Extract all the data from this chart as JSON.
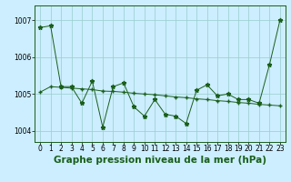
{
  "title": "Graphe pression niveau de la mer (hPa)",
  "background_color": "#cceeff",
  "line_color": "#1a5e1a",
  "grid_color": "#99cccc",
  "ylim": [
    1003.7,
    1007.4
  ],
  "yticks": [
    1004,
    1005,
    1006,
    1007
  ],
  "xlim": [
    -0.5,
    23.5
  ],
  "xticks": [
    0,
    1,
    2,
    3,
    4,
    5,
    6,
    7,
    8,
    9,
    10,
    11,
    12,
    13,
    14,
    15,
    16,
    17,
    18,
    19,
    20,
    21,
    22,
    23
  ],
  "series1": [
    1006.8,
    1006.85,
    1005.2,
    1005.2,
    1004.75,
    1005.35,
    1004.1,
    1005.2,
    1005.3,
    1004.65,
    1004.4,
    1004.85,
    1004.45,
    1004.4,
    1004.2,
    1005.1,
    1005.25,
    1004.95,
    1005.0,
    1004.85,
    1004.85,
    1004.75,
    1005.8,
    1007.0
  ],
  "series2": [
    1005.05,
    1005.2,
    1005.18,
    1005.16,
    1005.14,
    1005.12,
    1005.08,
    1005.07,
    1005.05,
    1005.02,
    1005.0,
    1004.98,
    1004.95,
    1004.92,
    1004.9,
    1004.87,
    1004.85,
    1004.82,
    1004.8,
    1004.77,
    1004.75,
    1004.72,
    1004.7,
    1004.68
  ],
  "title_fontsize": 7.5,
  "tick_fontsize": 5.5,
  "figwidth": 3.2,
  "figheight": 2.0,
  "dpi": 100
}
